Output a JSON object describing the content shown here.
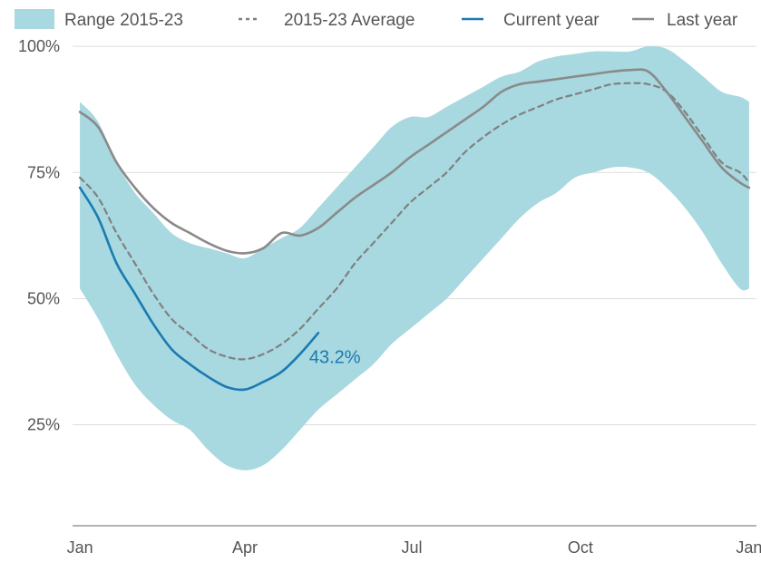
{
  "chart_data": {
    "type": "area",
    "title": "",
    "xlabel": "",
    "ylabel": "",
    "ylim": [
      5,
      102
    ],
    "y_ticks": [
      {
        "value": 100,
        "label": "100%"
      },
      {
        "value": 75,
        "label": "75%"
      },
      {
        "value": 50,
        "label": "50%"
      },
      {
        "value": 25,
        "label": "25%"
      }
    ],
    "x_ticks": [
      {
        "value": 0,
        "label": "Jan"
      },
      {
        "value": 90,
        "label": "Apr"
      },
      {
        "value": 181,
        "label": "Jul"
      },
      {
        "value": 273,
        "label": "Oct"
      },
      {
        "value": 365,
        "label": "Jan"
      }
    ],
    "xlim": [
      -4,
      369
    ],
    "grid": true,
    "legend_position": "top",
    "legend": [
      {
        "label": "Range 2015-23",
        "kind": "area",
        "color": "#a8d8e0"
      },
      {
        "label": "2015-23 Average",
        "kind": "dashed",
        "color": "#808080"
      },
      {
        "label": "Current year",
        "kind": "line",
        "color": "#1a7bb0"
      },
      {
        "label": "Last year",
        "kind": "line",
        "color": "#8a8a8a"
      }
    ],
    "series": [
      {
        "name": "Range 2015-23",
        "kind": "range",
        "color": "#a8d8e0",
        "x": [
          0,
          10,
          20,
          30,
          40,
          50,
          60,
          70,
          80,
          90,
          100,
          110,
          120,
          130,
          140,
          150,
          160,
          170,
          180,
          190,
          200,
          210,
          220,
          230,
          240,
          250,
          260,
          270,
          280,
          290,
          300,
          310,
          320,
          330,
          340,
          350,
          360,
          365
        ],
        "low": [
          52,
          46,
          39,
          33,
          29,
          26,
          24,
          20,
          17,
          16,
          17,
          20,
          24,
          28,
          31,
          34,
          37,
          41,
          44,
          47,
          50,
          54,
          58,
          62,
          66,
          69,
          71,
          74,
          75,
          76,
          76,
          75,
          72,
          68,
          63,
          57,
          52,
          52
        ],
        "high": [
          89,
          85,
          77,
          71,
          67,
          63,
          61,
          60,
          59,
          58,
          60,
          62,
          64,
          68,
          72,
          76,
          80,
          84,
          86,
          86,
          88,
          90,
          92,
          94,
          95,
          97,
          98,
          98.5,
          99,
          99,
          99,
          100,
          99.5,
          97,
          94,
          91,
          90,
          89
        ]
      },
      {
        "name": "2015-23 Average",
        "kind": "dashed",
        "color": "#808080",
        "x": [
          0,
          10,
          20,
          30,
          40,
          50,
          60,
          70,
          80,
          90,
          100,
          110,
          120,
          130,
          140,
          150,
          160,
          170,
          180,
          190,
          200,
          210,
          220,
          230,
          240,
          250,
          260,
          270,
          280,
          290,
          300,
          310,
          320,
          330,
          340,
          350,
          360,
          365
        ],
        "y": [
          74,
          70,
          63,
          57,
          51,
          46,
          43,
          40,
          38.5,
          38,
          39,
          41,
          44,
          48,
          52,
          57,
          61,
          65,
          69,
          72,
          75,
          79,
          82,
          84.5,
          86.5,
          88,
          89.5,
          90.5,
          91.5,
          92.5,
          92.7,
          92.5,
          91,
          87,
          82,
          77,
          75,
          73
        ]
      },
      {
        "name": "Last year",
        "kind": "line",
        "color": "#8a8a8a",
        "x": [
          0,
          10,
          20,
          30,
          40,
          50,
          60,
          70,
          80,
          90,
          100,
          110,
          120,
          130,
          140,
          150,
          160,
          170,
          180,
          190,
          200,
          210,
          220,
          230,
          240,
          250,
          260,
          270,
          280,
          290,
          300,
          310,
          320,
          330,
          340,
          350,
          360,
          365
        ],
        "y": [
          87,
          84,
          77,
          72,
          68,
          65,
          63,
          61,
          59.5,
          59,
          60,
          63,
          62.5,
          64,
          67,
          70,
          72.5,
          75,
          78,
          80.5,
          83,
          85.5,
          88,
          91,
          92.5,
          93,
          93.5,
          94,
          94.5,
          95,
          95.3,
          95,
          91,
          86,
          81,
          76,
          73,
          72
        ]
      },
      {
        "name": "Current year",
        "kind": "line",
        "color": "#1a7bb0",
        "x": [
          0,
          10,
          20,
          30,
          40,
          50,
          60,
          70,
          80,
          90,
          100,
          110,
          120,
          130
        ],
        "y": [
          72,
          66,
          57,
          51,
          45,
          40,
          37,
          34.5,
          32.5,
          32,
          33.5,
          35.5,
          39,
          43.2
        ],
        "end_label": "43.2%"
      }
    ]
  }
}
